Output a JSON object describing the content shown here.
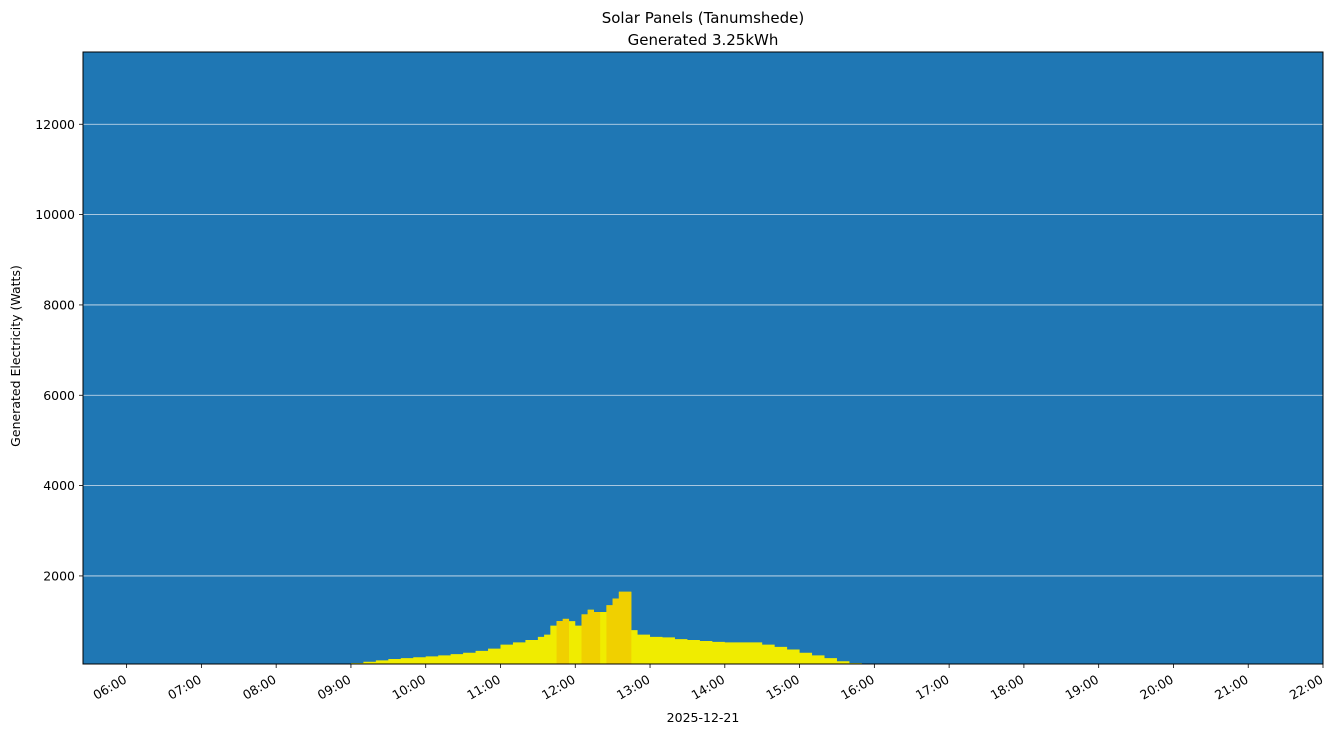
{
  "chart_data": {
    "type": "area",
    "title": "Solar Panels (Tanumshede)",
    "subtitle": "Generated 3.25kWh",
    "xlabel": "2025-12-21",
    "ylabel": "Generated Electricity (Watts)",
    "x_ticks": [
      "06:00",
      "07:00",
      "08:00",
      "09:00",
      "10:00",
      "11:00",
      "12:00",
      "13:00",
      "14:00",
      "15:00",
      "16:00",
      "17:00",
      "18:00",
      "19:00",
      "20:00",
      "21:00",
      "22:00"
    ],
    "y_ticks": [
      2000,
      4000,
      6000,
      8000,
      10000,
      12000
    ],
    "xlim": [
      "05:25",
      "22:00"
    ],
    "ylim": [
      50,
      13600
    ],
    "grid": "horizontal",
    "colors": {
      "background": "#1f77b4",
      "fill": "#f0ec00",
      "fill_peak": "#f0d000",
      "grid": "#d8e4ef"
    },
    "series": [
      {
        "x": [
          "09:00",
          "09:10",
          "09:20",
          "09:30",
          "09:40",
          "09:50",
          "10:00",
          "10:10",
          "10:20",
          "10:30",
          "10:40",
          "10:50",
          "11:00",
          "11:10",
          "11:20",
          "11:30",
          "11:35",
          "11:40",
          "11:45",
          "11:50",
          "11:55",
          "12:00",
          "12:05",
          "12:10",
          "12:15",
          "12:20",
          "12:25",
          "12:30",
          "12:35",
          "12:40",
          "12:45",
          "12:50",
          "13:00",
          "13:10",
          "13:20",
          "13:30",
          "13:40",
          "13:50",
          "14:00",
          "14:10",
          "14:20",
          "14:30",
          "14:40",
          "14:50",
          "15:00",
          "15:10",
          "15:20",
          "15:30",
          "15:40",
          "15:50"
        ],
        "y": [
          70,
          100,
          130,
          160,
          180,
          200,
          220,
          240,
          270,
          300,
          340,
          390,
          480,
          530,
          580,
          650,
          700,
          900,
          1000,
          1050,
          1000,
          900,
          1150,
          1250,
          1200,
          1200,
          1350,
          1500,
          1650,
          1650,
          800,
          700,
          650,
          640,
          600,
          580,
          560,
          540,
          530,
          530,
          530,
          480,
          430,
          370,
          300,
          240,
          180,
          110,
          70,
          50
        ]
      }
    ]
  }
}
